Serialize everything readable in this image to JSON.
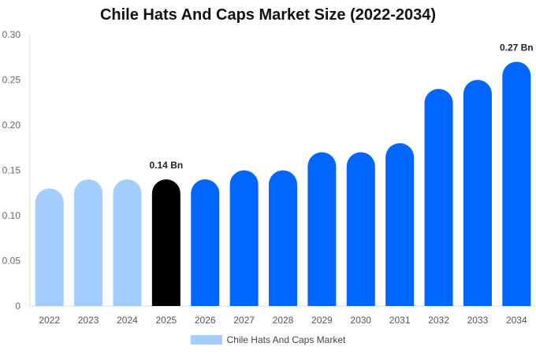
{
  "chart_data": {
    "type": "bar",
    "title": "Chile Hats And Caps Market Size (2022-2034)",
    "categories": [
      "2022",
      "2023",
      "2024",
      "2025",
      "2026",
      "2027",
      "2028",
      "2029",
      "2030",
      "2031",
      "2032",
      "2033",
      "2034"
    ],
    "series": [
      {
        "name": "Chile Hats And Caps Market",
        "values": [
          0.13,
          0.14,
          0.14,
          0.14,
          0.14,
          0.15,
          0.15,
          0.17,
          0.17,
          0.18,
          0.24,
          0.25,
          0.27
        ]
      }
    ],
    "bar_colors": [
      "#a3cdfc",
      "#a3cdfc",
      "#a3cdfc",
      "#000000",
      "#0066ff",
      "#0066ff",
      "#0066ff",
      "#0066ff",
      "#0066ff",
      "#0066ff",
      "#0066ff",
      "#0066ff",
      "#0066ff"
    ],
    "data_labels": [
      {
        "index": 3,
        "text": "0.14 Bn"
      },
      {
        "index": 12,
        "text": "0.27 Bn"
      }
    ],
    "yticks": [
      0,
      0.05,
      0.1,
      0.15,
      0.2,
      0.25,
      0.3
    ],
    "ytick_labels": [
      "0",
      "0.05",
      "0.10",
      "0.15",
      "0.20",
      "0.25",
      "0.30"
    ],
    "ylim": [
      0,
      0.3
    ],
    "grid": false,
    "legend_position": "bottom-center",
    "legend_color": "#a3cdfc"
  }
}
